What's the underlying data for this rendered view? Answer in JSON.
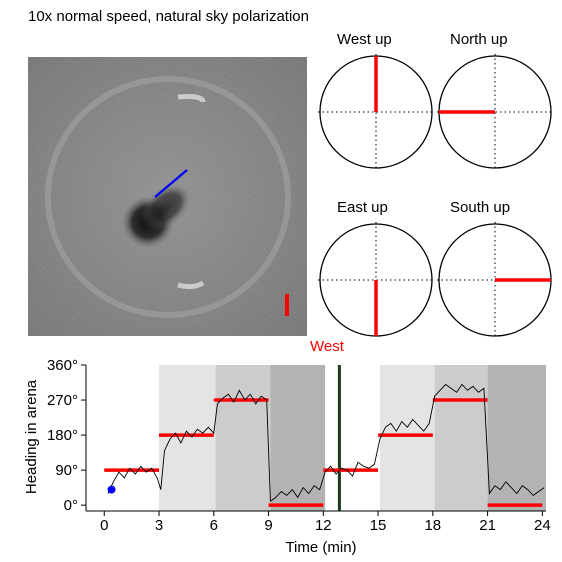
{
  "title": "10x normal speed, natural sky polarization",
  "compasses": [
    {
      "label": "West up",
      "direction": "up"
    },
    {
      "label": "North up",
      "direction": "left"
    },
    {
      "label": "East up",
      "direction": "down"
    },
    {
      "label": "South up",
      "direction": "right"
    }
  ],
  "current_direction": "West",
  "colors": {
    "stimulus": "#ff0000",
    "heading_marker": "#0000ff",
    "trace": "#000000",
    "shade_light": "#e4e4e4",
    "shade_mid": "#cccccc",
    "shade_dark": "#b3b3b3",
    "divider": "#1a3a1a"
  },
  "chart_data": {
    "type": "line",
    "xlabel": "Time (min)",
    "ylabel": "Heading in arena",
    "xlim": [
      -1,
      24.2
    ],
    "ylim": [
      -15,
      360
    ],
    "xticks": [
      0,
      3,
      6,
      9,
      12,
      15,
      18,
      21,
      24
    ],
    "xtick_labels": [
      "0",
      "3",
      "6",
      "9",
      "12",
      "15",
      "18",
      "21",
      "24"
    ],
    "yticks": [
      0,
      90,
      180,
      270,
      360
    ],
    "ytick_labels": [
      "0°",
      "90°",
      "180°",
      "270°",
      "360°"
    ],
    "current_time_min": 0.4,
    "current_heading_deg": 40,
    "shaded_periods": [
      {
        "start": 3,
        "end": 6.1,
        "shade": "light"
      },
      {
        "start": 6.1,
        "end": 9.1,
        "shade": "mid"
      },
      {
        "start": 9.1,
        "end": 12.1,
        "shade": "dark"
      },
      {
        "start": 15.1,
        "end": 18.1,
        "shade": "light"
      },
      {
        "start": 18.1,
        "end": 21,
        "shade": "mid"
      },
      {
        "start": 21,
        "end": 24.2,
        "shade": "dark"
      }
    ],
    "stimulus_segments": [
      {
        "start": 0,
        "end": 3,
        "heading": 90
      },
      {
        "start": 3,
        "end": 6,
        "heading": 180
      },
      {
        "start": 6,
        "end": 9,
        "heading": 270
      },
      {
        "start": 9,
        "end": 12,
        "heading": 0
      },
      {
        "start": 12,
        "end": 15,
        "heading": 90
      },
      {
        "start": 15,
        "end": 18,
        "heading": 180
      },
      {
        "start": 18,
        "end": 21,
        "heading": 270
      },
      {
        "start": 21,
        "end": 24,
        "heading": 0
      }
    ],
    "heading_trace": [
      [
        0.2,
        30
      ],
      [
        0.5,
        60
      ],
      [
        0.8,
        85
      ],
      [
        1.1,
        70
      ],
      [
        1.4,
        95
      ],
      [
        1.7,
        80
      ],
      [
        2.0,
        100
      ],
      [
        2.3,
        85
      ],
      [
        2.6,
        95
      ],
      [
        2.9,
        70
      ],
      [
        3.1,
        40
      ],
      [
        3.3,
        140
      ],
      [
        3.6,
        170
      ],
      [
        3.9,
        185
      ],
      [
        4.2,
        160
      ],
      [
        4.5,
        190
      ],
      [
        4.8,
        175
      ],
      [
        5.1,
        195
      ],
      [
        5.4,
        185
      ],
      [
        5.7,
        200
      ],
      [
        6.0,
        185
      ],
      [
        6.2,
        260
      ],
      [
        6.5,
        275
      ],
      [
        6.8,
        285
      ],
      [
        7.1,
        265
      ],
      [
        7.4,
        295
      ],
      [
        7.7,
        270
      ],
      [
        8.0,
        285
      ],
      [
        8.3,
        260
      ],
      [
        8.6,
        280
      ],
      [
        8.9,
        270
      ],
      [
        9.1,
        10
      ],
      [
        9.4,
        20
      ],
      [
        9.7,
        35
      ],
      [
        10.0,
        25
      ],
      [
        10.3,
        40
      ],
      [
        10.6,
        20
      ],
      [
        10.9,
        45
      ],
      [
        11.2,
        30
      ],
      [
        11.5,
        50
      ],
      [
        11.8,
        40
      ],
      [
        12.1,
        85
      ],
      [
        12.4,
        100
      ],
      [
        12.7,
        80
      ],
      [
        13.0,
        95
      ],
      [
        13.3,
        90
      ],
      [
        13.6,
        75
      ],
      [
        13.9,
        110
      ],
      [
        14.2,
        100
      ],
      [
        14.5,
        95
      ],
      [
        14.8,
        105
      ],
      [
        15.1,
        170
      ],
      [
        15.4,
        200
      ],
      [
        15.7,
        210
      ],
      [
        16.0,
        190
      ],
      [
        16.3,
        215
      ],
      [
        16.6,
        200
      ],
      [
        16.9,
        220
      ],
      [
        17.2,
        205
      ],
      [
        17.5,
        190
      ],
      [
        17.8,
        210
      ],
      [
        18.1,
        280
      ],
      [
        18.4,
        295
      ],
      [
        18.7,
        310
      ],
      [
        19.0,
        300
      ],
      [
        19.3,
        290
      ],
      [
        19.6,
        310
      ],
      [
        19.9,
        295
      ],
      [
        20.2,
        305
      ],
      [
        20.5,
        290
      ],
      [
        20.8,
        300
      ],
      [
        21.1,
        30
      ],
      [
        21.4,
        50
      ],
      [
        21.7,
        40
      ],
      [
        22.0,
        60
      ],
      [
        22.3,
        45
      ],
      [
        22.6,
        30
      ],
      [
        22.9,
        50
      ],
      [
        23.2,
        40
      ],
      [
        23.5,
        25
      ],
      [
        23.8,
        35
      ],
      [
        24.1,
        45
      ]
    ]
  }
}
